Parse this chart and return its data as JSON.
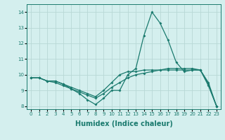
{
  "title": "",
  "xlabel": "Humidex (Indice chaleur)",
  "ylabel": "",
  "bg_color": "#d4efee",
  "grid_color": "#b8d8d6",
  "line_color": "#1a7a6e",
  "xlim": [
    -0.5,
    23.5
  ],
  "ylim": [
    7.8,
    14.5
  ],
  "xticks": [
    0,
    1,
    2,
    3,
    4,
    5,
    6,
    7,
    8,
    9,
    10,
    11,
    12,
    13,
    14,
    15,
    16,
    17,
    18,
    19,
    20,
    21,
    22,
    23
  ],
  "yticks": [
    8,
    9,
    10,
    11,
    12,
    13,
    14
  ],
  "line1_x": [
    0,
    1,
    2,
    3,
    4,
    5,
    6,
    7,
    8,
    9,
    10,
    11,
    12,
    13,
    14,
    15,
    16,
    17,
    18,
    19,
    20,
    21,
    22,
    23
  ],
  "line1_y": [
    9.8,
    9.8,
    9.6,
    9.6,
    9.4,
    9.1,
    8.8,
    8.4,
    8.1,
    8.5,
    9.0,
    9.0,
    10.0,
    10.4,
    12.5,
    14.0,
    13.3,
    12.2,
    10.8,
    10.2,
    10.3,
    10.3,
    9.3,
    8.0
  ],
  "line2_x": [
    0,
    1,
    2,
    3,
    4,
    5,
    6,
    7,
    8,
    9,
    10,
    11,
    12,
    13,
    14,
    15,
    16,
    17,
    18,
    19,
    20,
    21,
    22,
    23
  ],
  "line2_y": [
    9.8,
    9.8,
    9.6,
    9.6,
    9.4,
    9.2,
    9.0,
    8.8,
    8.6,
    9.0,
    9.5,
    10.0,
    10.2,
    10.2,
    10.3,
    10.3,
    10.3,
    10.3,
    10.3,
    10.3,
    10.3,
    10.3,
    9.5,
    8.0
  ],
  "line3_x": [
    0,
    1,
    2,
    3,
    4,
    5,
    6,
    7,
    8,
    9,
    10,
    11,
    12,
    13,
    14,
    15,
    16,
    17,
    18,
    19,
    20,
    21,
    22,
    23
  ],
  "line3_y": [
    9.8,
    9.8,
    9.6,
    9.5,
    9.3,
    9.1,
    8.9,
    8.7,
    8.5,
    8.8,
    9.2,
    9.5,
    9.8,
    10.0,
    10.1,
    10.2,
    10.3,
    10.4,
    10.4,
    10.4,
    10.4,
    10.3,
    9.4,
    8.0
  ],
  "tick_fontsize": 5.0,
  "xlabel_fontsize": 7.0,
  "marker_size": 2.0,
  "line_width": 0.9
}
